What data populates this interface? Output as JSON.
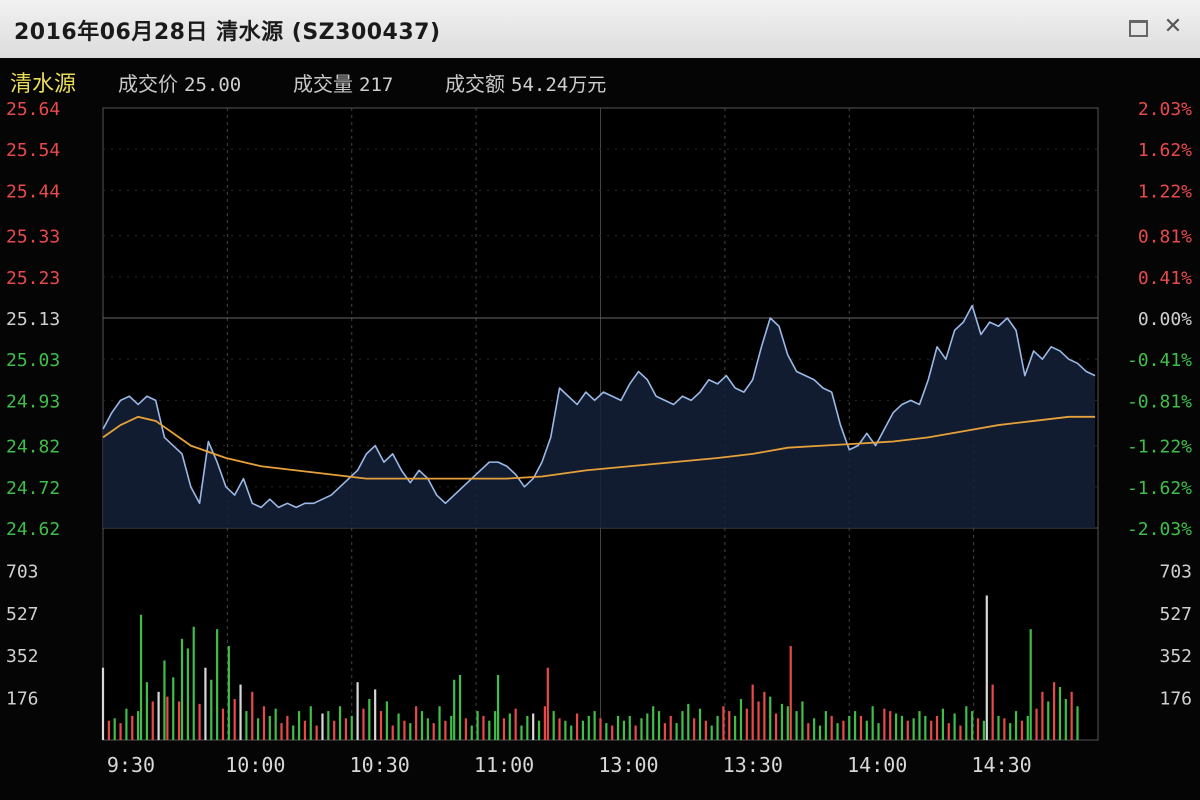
{
  "window": {
    "title": "2016年06月28日  清水源 (SZ300437)"
  },
  "info": {
    "name": "清水源",
    "price_label": "成交价",
    "price_value": "25.00",
    "volume_label": "成交量",
    "volume_value": "217",
    "amount_label": "成交额",
    "amount_value": "54.24万元"
  },
  "colors": {
    "up": "#e84a4a",
    "down": "#3fbf4a",
    "flat": "#d8d8d8",
    "price_line": "#9bb8e6",
    "avg_line": "#e6a03a",
    "grid": "#444444"
  },
  "chart_data": {
    "type": "line",
    "title": "",
    "prev_close": 25.13,
    "price_axis": {
      "ticks": [
        25.64,
        25.54,
        25.44,
        25.33,
        25.23,
        25.13,
        25.03,
        24.93,
        24.82,
        24.72,
        24.62
      ],
      "tick_labels": [
        "25.64",
        "25.54",
        "25.44",
        "25.33",
        "25.23",
        "25.13",
        "25.03",
        "24.93",
        "24.82",
        "24.72",
        "24.62"
      ],
      "ylim": [
        24.62,
        25.64
      ]
    },
    "pct_axis": {
      "tick_labels": [
        "2.03%",
        "1.62%",
        "1.22%",
        "0.81%",
        "0.41%",
        "0.00%",
        "-0.41%",
        "-0.81%",
        "-1.22%",
        "-1.62%",
        "-2.03%"
      ]
    },
    "volume_axis": {
      "tick_labels": [
        "703",
        "527",
        "352",
        "176"
      ],
      "ticks": [
        703,
        527,
        352,
        176
      ],
      "ylim": [
        0,
        880
      ]
    },
    "time_labels": [
      "9:30",
      "10:00",
      "10:30",
      "11:00",
      "13:00",
      "13:30",
      "14:00",
      "14:30"
    ],
    "price_series": [
      [
        0,
        24.86
      ],
      [
        3,
        24.9
      ],
      [
        6,
        24.93
      ],
      [
        9,
        24.94
      ],
      [
        12,
        24.92
      ],
      [
        15,
        24.94
      ],
      [
        18,
        24.93
      ],
      [
        21,
        24.84
      ],
      [
        24,
        24.82
      ],
      [
        27,
        24.8
      ],
      [
        30,
        24.72
      ],
      [
        33,
        24.68
      ],
      [
        36,
        24.83
      ],
      [
        39,
        24.78
      ],
      [
        42,
        24.72
      ],
      [
        45,
        24.7
      ],
      [
        48,
        24.74
      ],
      [
        51,
        24.68
      ],
      [
        54,
        24.67
      ],
      [
        57,
        24.69
      ],
      [
        60,
        24.67
      ],
      [
        63,
        24.68
      ],
      [
        66,
        24.67
      ],
      [
        69,
        24.68
      ],
      [
        72,
        24.68
      ],
      [
        75,
        24.69
      ],
      [
        78,
        24.7
      ],
      [
        81,
        24.72
      ],
      [
        84,
        24.74
      ],
      [
        87,
        24.76
      ],
      [
        90,
        24.8
      ],
      [
        93,
        24.82
      ],
      [
        96,
        24.78
      ],
      [
        99,
        24.8
      ],
      [
        102,
        24.76
      ],
      [
        105,
        24.73
      ],
      [
        108,
        24.76
      ],
      [
        111,
        24.74
      ],
      [
        114,
        24.7
      ],
      [
        117,
        24.68
      ],
      [
        120,
        24.7
      ],
      [
        123,
        24.72
      ],
      [
        126,
        24.74
      ],
      [
        129,
        24.76
      ],
      [
        132,
        24.78
      ],
      [
        135,
        24.78
      ],
      [
        138,
        24.77
      ],
      [
        141,
        24.75
      ],
      [
        144,
        24.72
      ],
      [
        147,
        24.74
      ],
      [
        150,
        24.78
      ],
      [
        153,
        24.84
      ],
      [
        156,
        24.96
      ],
      [
        159,
        24.94
      ],
      [
        162,
        24.92
      ],
      [
        165,
        24.95
      ],
      [
        168,
        24.93
      ],
      [
        171,
        24.95
      ],
      [
        174,
        24.94
      ],
      [
        177,
        24.93
      ],
      [
        180,
        24.97
      ],
      [
        183,
        25.0
      ],
      [
        186,
        24.98
      ],
      [
        189,
        24.94
      ],
      [
        192,
        24.93
      ],
      [
        195,
        24.92
      ],
      [
        198,
        24.94
      ],
      [
        201,
        24.93
      ],
      [
        204,
        24.95
      ],
      [
        207,
        24.98
      ],
      [
        210,
        24.97
      ],
      [
        213,
        24.99
      ],
      [
        216,
        24.96
      ],
      [
        219,
        24.95
      ],
      [
        222,
        24.98
      ],
      [
        225,
        25.06
      ],
      [
        228,
        25.13
      ],
      [
        231,
        25.11
      ],
      [
        234,
        25.04
      ],
      [
        237,
        25.0
      ],
      [
        240,
        24.99
      ],
      [
        243,
        24.98
      ],
      [
        246,
        24.96
      ],
      [
        249,
        24.95
      ],
      [
        252,
        24.87
      ],
      [
        255,
        24.81
      ],
      [
        258,
        24.82
      ],
      [
        261,
        24.85
      ],
      [
        264,
        24.82
      ],
      [
        267,
        24.86
      ],
      [
        270,
        24.9
      ],
      [
        273,
        24.92
      ],
      [
        276,
        24.93
      ],
      [
        279,
        24.92
      ],
      [
        282,
        24.98
      ],
      [
        285,
        25.06
      ],
      [
        288,
        25.03
      ],
      [
        291,
        25.1
      ],
      [
        294,
        25.12
      ],
      [
        297,
        25.16
      ],
      [
        300,
        25.09
      ],
      [
        303,
        25.12
      ],
      [
        306,
        25.11
      ],
      [
        309,
        25.13
      ],
      [
        312,
        25.1
      ],
      [
        315,
        24.99
      ],
      [
        318,
        25.05
      ],
      [
        321,
        25.03
      ],
      [
        324,
        25.06
      ],
      [
        327,
        25.05
      ],
      [
        330,
        25.03
      ],
      [
        333,
        25.02
      ],
      [
        336,
        25.0
      ],
      [
        339,
        24.99
      ]
    ],
    "avg_series": [
      [
        0,
        24.84
      ],
      [
        6,
        24.87
      ],
      [
        12,
        24.89
      ],
      [
        18,
        24.88
      ],
      [
        24,
        24.85
      ],
      [
        30,
        24.82
      ],
      [
        42,
        24.79
      ],
      [
        54,
        24.77
      ],
      [
        66,
        24.76
      ],
      [
        78,
        24.75
      ],
      [
        90,
        24.74
      ],
      [
        102,
        24.74
      ],
      [
        120,
        24.74
      ],
      [
        138,
        24.74
      ],
      [
        150,
        24.745
      ],
      [
        165,
        24.76
      ],
      [
        180,
        24.77
      ],
      [
        195,
        24.78
      ],
      [
        210,
        24.79
      ],
      [
        222,
        24.8
      ],
      [
        234,
        24.815
      ],
      [
        246,
        24.82
      ],
      [
        258,
        24.825
      ],
      [
        270,
        24.83
      ],
      [
        282,
        24.84
      ],
      [
        294,
        24.855
      ],
      [
        306,
        24.87
      ],
      [
        318,
        24.88
      ],
      [
        330,
        24.89
      ],
      [
        339,
        24.89
      ]
    ],
    "volume_bars": [
      [
        0,
        300,
        "flat"
      ],
      [
        2,
        80,
        "up"
      ],
      [
        4,
        90,
        "down"
      ],
      [
        6,
        70,
        "up"
      ],
      [
        8,
        130,
        "down"
      ],
      [
        10,
        100,
        "up"
      ],
      [
        12,
        120,
        "down"
      ],
      [
        13,
        520,
        "down"
      ],
      [
        15,
        240,
        "down"
      ],
      [
        17,
        160,
        "up"
      ],
      [
        19,
        200,
        "flat"
      ],
      [
        21,
        330,
        "down"
      ],
      [
        22,
        180,
        "up"
      ],
      [
        24,
        260,
        "down"
      ],
      [
        26,
        160,
        "up"
      ],
      [
        27,
        420,
        "down"
      ],
      [
        29,
        380,
        "down"
      ],
      [
        31,
        470,
        "down"
      ],
      [
        33,
        150,
        "up"
      ],
      [
        35,
        300,
        "flat"
      ],
      [
        37,
        250,
        "down"
      ],
      [
        39,
        460,
        "down"
      ],
      [
        41,
        130,
        "up"
      ],
      [
        43,
        390,
        "down"
      ],
      [
        45,
        170,
        "up"
      ],
      [
        47,
        230,
        "flat"
      ],
      [
        49,
        120,
        "down"
      ],
      [
        51,
        200,
        "up"
      ],
      [
        53,
        90,
        "down"
      ],
      [
        55,
        140,
        "up"
      ],
      [
        57,
        100,
        "down"
      ],
      [
        59,
        130,
        "down"
      ],
      [
        61,
        70,
        "up"
      ],
      [
        63,
        100,
        "up"
      ],
      [
        65,
        60,
        "down"
      ],
      [
        67,
        120,
        "down"
      ],
      [
        69,
        80,
        "up"
      ],
      [
        71,
        140,
        "down"
      ],
      [
        73,
        60,
        "up"
      ],
      [
        75,
        110,
        "flat"
      ],
      [
        77,
        120,
        "down"
      ],
      [
        79,
        80,
        "up"
      ],
      [
        81,
        140,
        "down"
      ],
      [
        83,
        90,
        "up"
      ],
      [
        85,
        100,
        "down"
      ],
      [
        87,
        240,
        "flat"
      ],
      [
        89,
        130,
        "up"
      ],
      [
        91,
        170,
        "down"
      ],
      [
        93,
        210,
        "flat"
      ],
      [
        95,
        120,
        "up"
      ],
      [
        97,
        160,
        "down"
      ],
      [
        99,
        60,
        "up"
      ],
      [
        101,
        110,
        "down"
      ],
      [
        103,
        80,
        "up"
      ],
      [
        105,
        70,
        "down"
      ],
      [
        107,
        140,
        "up"
      ],
      [
        109,
        120,
        "down"
      ],
      [
        111,
        90,
        "down"
      ],
      [
        113,
        70,
        "up"
      ],
      [
        115,
        140,
        "down"
      ],
      [
        117,
        80,
        "up"
      ],
      [
        119,
        100,
        "down"
      ],
      [
        120,
        250,
        "down"
      ],
      [
        122,
        270,
        "down"
      ],
      [
        124,
        90,
        "up"
      ],
      [
        126,
        60,
        "down"
      ],
      [
        128,
        120,
        "down"
      ],
      [
        130,
        100,
        "up"
      ],
      [
        132,
        80,
        "down"
      ],
      [
        134,
        120,
        "down"
      ],
      [
        135,
        270,
        "down"
      ],
      [
        137,
        90,
        "up"
      ],
      [
        139,
        110,
        "down"
      ],
      [
        141,
        130,
        "up"
      ],
      [
        143,
        60,
        "down"
      ],
      [
        145,
        100,
        "down"
      ],
      [
        147,
        110,
        "flat"
      ],
      [
        149,
        80,
        "down"
      ],
      [
        151,
        140,
        "up"
      ],
      [
        152,
        300,
        "up"
      ],
      [
        154,
        120,
        "down"
      ],
      [
        156,
        90,
        "up"
      ],
      [
        158,
        80,
        "down"
      ],
      [
        160,
        60,
        "down"
      ],
      [
        162,
        110,
        "up"
      ],
      [
        164,
        80,
        "down"
      ],
      [
        166,
        100,
        "down"
      ],
      [
        168,
        120,
        "down"
      ],
      [
        170,
        90,
        "up"
      ],
      [
        172,
        70,
        "down"
      ],
      [
        174,
        60,
        "up"
      ],
      [
        176,
        100,
        "down"
      ],
      [
        178,
        80,
        "down"
      ],
      [
        180,
        100,
        "down"
      ],
      [
        182,
        60,
        "up"
      ],
      [
        184,
        90,
        "down"
      ],
      [
        186,
        110,
        "down"
      ],
      [
        188,
        140,
        "down"
      ],
      [
        190,
        120,
        "down"
      ],
      [
        192,
        70,
        "up"
      ],
      [
        194,
        100,
        "up"
      ],
      [
        196,
        70,
        "down"
      ],
      [
        198,
        120,
        "down"
      ],
      [
        200,
        150,
        "down"
      ],
      [
        202,
        90,
        "up"
      ],
      [
        204,
        130,
        "down"
      ],
      [
        206,
        80,
        "up"
      ],
      [
        208,
        60,
        "down"
      ],
      [
        210,
        100,
        "down"
      ],
      [
        212,
        140,
        "up"
      ],
      [
        214,
        120,
        "up"
      ],
      [
        216,
        100,
        "down"
      ],
      [
        218,
        170,
        "down"
      ],
      [
        220,
        130,
        "up"
      ],
      [
        222,
        230,
        "up"
      ],
      [
        224,
        160,
        "up"
      ],
      [
        226,
        200,
        "up"
      ],
      [
        228,
        180,
        "down"
      ],
      [
        230,
        110,
        "up"
      ],
      [
        232,
        150,
        "down"
      ],
      [
        234,
        140,
        "down"
      ],
      [
        235,
        390,
        "up"
      ],
      [
        237,
        120,
        "down"
      ],
      [
        239,
        160,
        "down"
      ],
      [
        241,
        70,
        "up"
      ],
      [
        243,
        90,
        "down"
      ],
      [
        245,
        60,
        "down"
      ],
      [
        247,
        120,
        "down"
      ],
      [
        249,
        100,
        "up"
      ],
      [
        251,
        70,
        "down"
      ],
      [
        253,
        80,
        "up"
      ],
      [
        255,
        100,
        "down"
      ],
      [
        257,
        120,
        "down"
      ],
      [
        259,
        100,
        "up"
      ],
      [
        261,
        80,
        "down"
      ],
      [
        263,
        140,
        "down"
      ],
      [
        265,
        70,
        "down"
      ],
      [
        267,
        130,
        "up"
      ],
      [
        269,
        120,
        "up"
      ],
      [
        271,
        110,
        "down"
      ],
      [
        273,
        100,
        "down"
      ],
      [
        275,
        80,
        "up"
      ],
      [
        277,
        90,
        "down"
      ],
      [
        279,
        120,
        "down"
      ],
      [
        281,
        100,
        "down"
      ],
      [
        283,
        80,
        "up"
      ],
      [
        285,
        100,
        "up"
      ],
      [
        287,
        130,
        "down"
      ],
      [
        289,
        70,
        "up"
      ],
      [
        291,
        110,
        "down"
      ],
      [
        293,
        60,
        "up"
      ],
      [
        295,
        140,
        "down"
      ],
      [
        297,
        120,
        "down"
      ],
      [
        299,
        90,
        "up"
      ],
      [
        301,
        80,
        "down"
      ],
      [
        302,
        600,
        "flat"
      ],
      [
        304,
        230,
        "up"
      ],
      [
        306,
        100,
        "down"
      ],
      [
        308,
        90,
        "up"
      ],
      [
        310,
        70,
        "down"
      ],
      [
        312,
        120,
        "down"
      ],
      [
        314,
        80,
        "up"
      ],
      [
        316,
        100,
        "down"
      ],
      [
        317,
        460,
        "down"
      ],
      [
        319,
        130,
        "up"
      ],
      [
        321,
        200,
        "up"
      ],
      [
        323,
        160,
        "down"
      ],
      [
        325,
        240,
        "up"
      ],
      [
        327,
        220,
        "down"
      ],
      [
        329,
        170,
        "down"
      ],
      [
        331,
        200,
        "up"
      ],
      [
        333,
        140,
        "down"
      ]
    ]
  }
}
